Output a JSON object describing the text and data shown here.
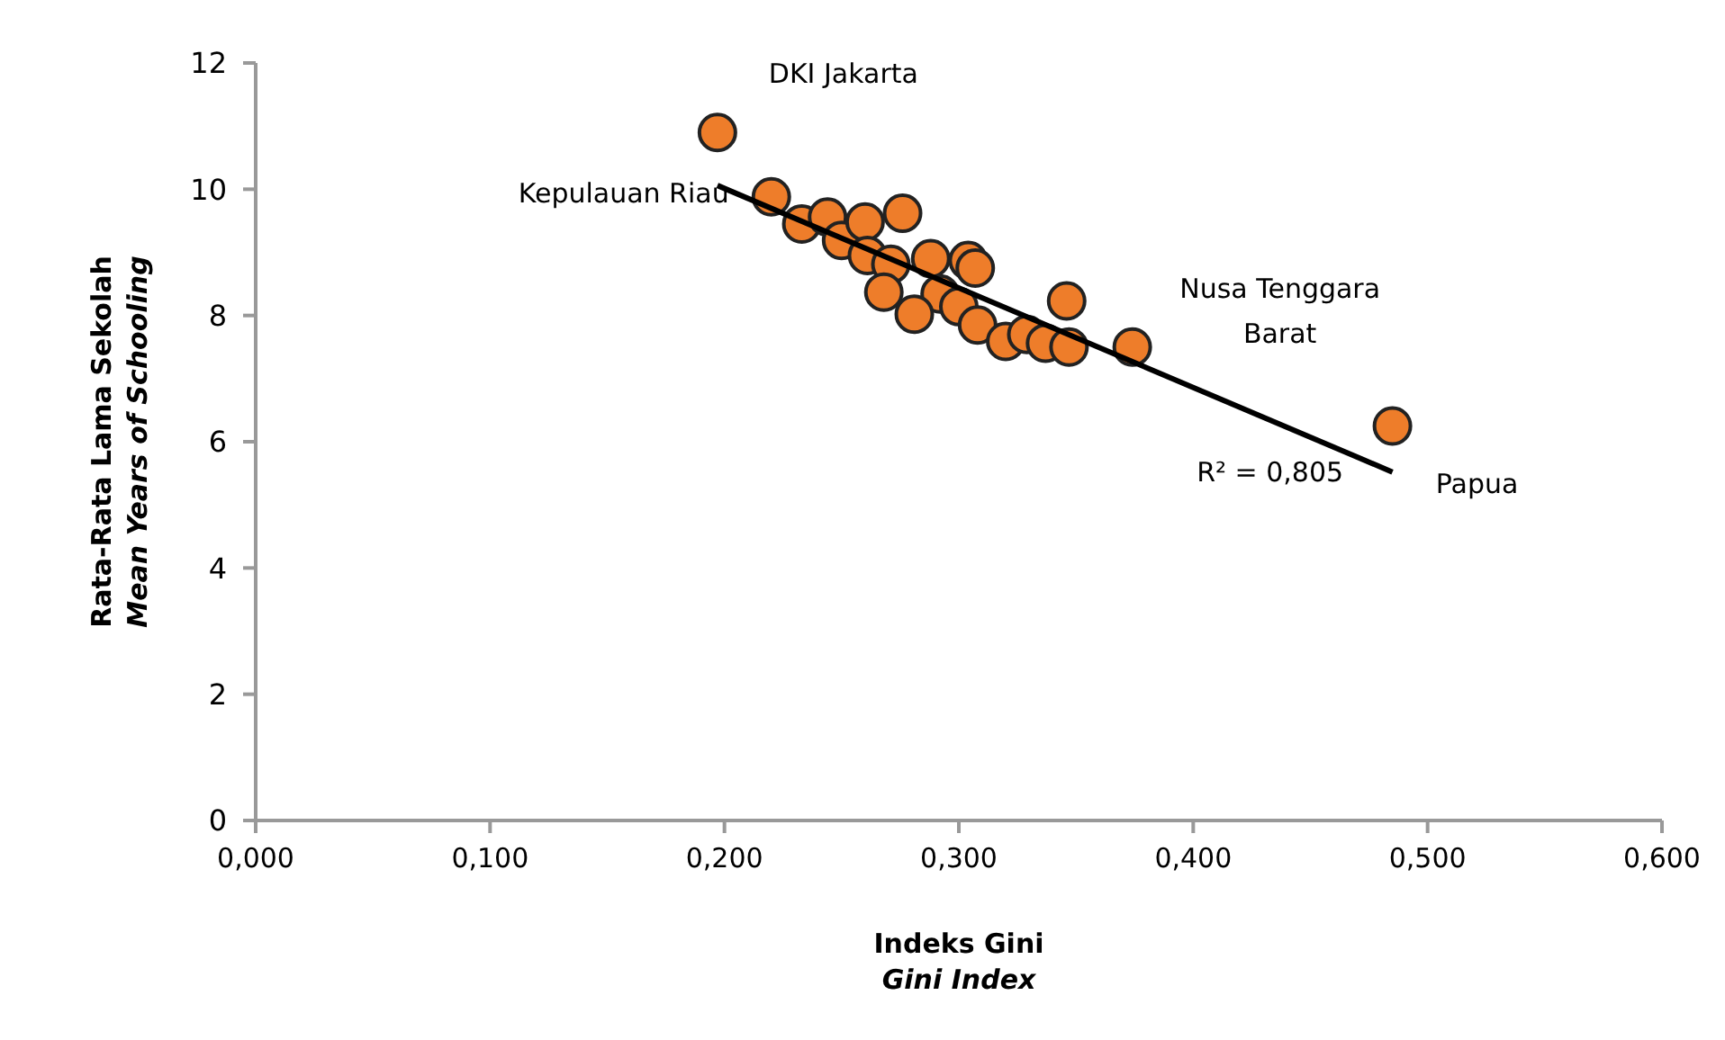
{
  "chart_data": {
    "type": "scatter",
    "xlabel": "Indeks Gini\nGini Index",
    "ylabel": "Rata-Rata Lama Sekolah\nMean Years of Schooling",
    "xlim": [
      0,
      0.6
    ],
    "ylim": [
      0,
      12
    ],
    "xticks": [
      {
        "value": 0,
        "label": "0,000"
      },
      {
        "value": 0.1,
        "label": "0,100"
      },
      {
        "value": 0.2,
        "label": "0,200"
      },
      {
        "value": 0.3,
        "label": "0,300"
      },
      {
        "value": 0.4,
        "label": "0,400"
      },
      {
        "value": 0.5,
        "label": "0,500"
      },
      {
        "value": 0.6,
        "label": "0,600"
      }
    ],
    "yticks": [
      0,
      2,
      4,
      6,
      8,
      10,
      12
    ],
    "grid": false,
    "marker": "circle",
    "series": [
      {
        "color": "#ee7d2a",
        "x": [
          0.197,
          0.22,
          0.233,
          0.244,
          0.25,
          0.26,
          0.276,
          0.261,
          0.271,
          0.288,
          0.304,
          0.307,
          0.268,
          0.292,
          0.281,
          0.3,
          0.308,
          0.32,
          0.329,
          0.337,
          0.346,
          0.347,
          0.374,
          0.485
        ],
        "values": [
          10.9,
          9.88,
          9.45,
          9.56,
          9.19,
          9.48,
          9.62,
          8.95,
          8.81,
          8.9,
          8.87,
          8.75,
          8.37,
          8.34,
          8.02,
          8.14,
          7.85,
          7.59,
          7.7,
          7.56,
          8.23,
          7.5,
          7.5,
          6.25
        ]
      },
      {
        "type": "line",
        "color": "#000000",
        "line_style": "solid",
        "marker": "none",
        "x": [
          0.197,
          0.485
        ],
        "values": [
          10.06,
          5.52
        ]
      }
    ],
    "annotations": [
      {
        "text": "DKI Jakarta",
        "x": 0.197,
        "y": 10.9
      },
      {
        "text": "Kepulauan Riau",
        "x": 0.22,
        "y": 9.88
      },
      {
        "text": "Nusa Tenggara\nBarat",
        "x": 0.374,
        "y": 7.5
      },
      {
        "text": "Papua",
        "x": 0.485,
        "y": 6.25
      },
      "R² = 0,805"
    ]
  }
}
